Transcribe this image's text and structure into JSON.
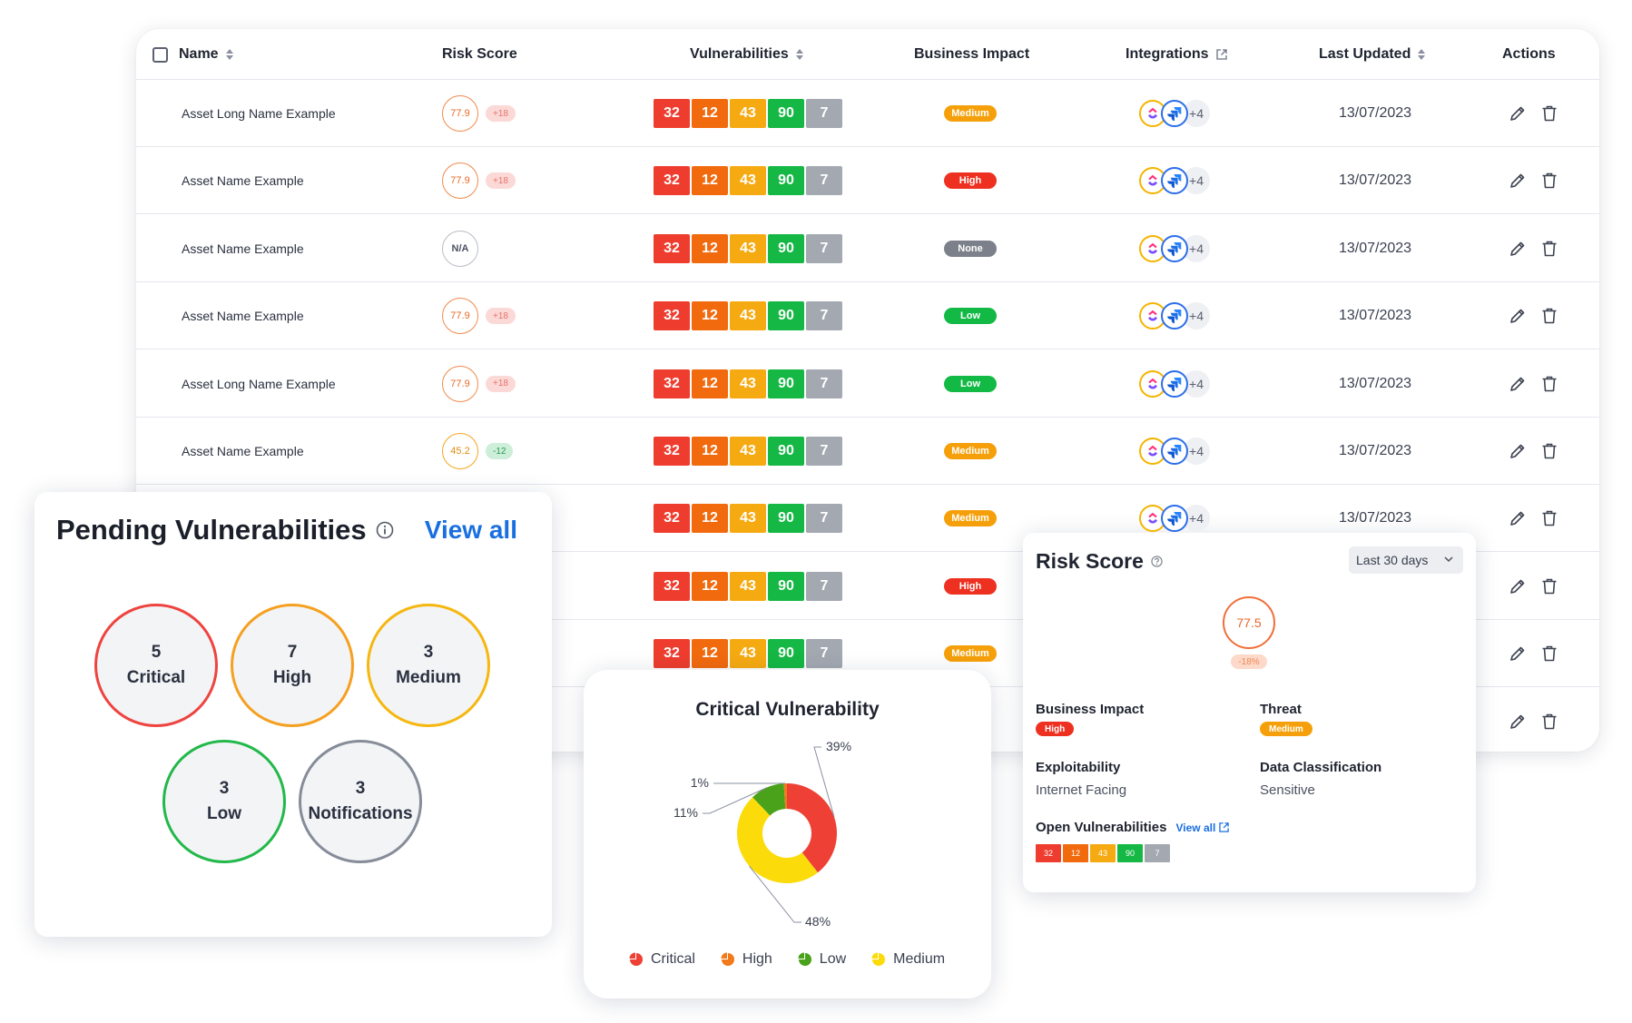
{
  "table": {
    "headers": {
      "name": "Name",
      "risk_score": "Risk Score",
      "vulnerabilities": "Vulnerabilities",
      "business_impact": "Business Impact",
      "integrations": "Integrations",
      "last_updated": "Last Updated",
      "actions": "Actions"
    },
    "rows": [
      {
        "name": "Asset Long Name Example",
        "score": "77.9",
        "delta": "+18",
        "vulns": [
          "32",
          "12",
          "43",
          "90",
          "7"
        ],
        "impact": "Medium",
        "more": "+4",
        "date": "13/07/2023"
      },
      {
        "name": "Asset Name Example",
        "score": "77.9",
        "delta": "+18",
        "vulns": [
          "32",
          "12",
          "43",
          "90",
          "7"
        ],
        "impact": "High",
        "more": "+4",
        "date": "13/07/2023"
      },
      {
        "name": "Asset Name Example",
        "score": "N/A",
        "delta": "",
        "vulns": [
          "32",
          "12",
          "43",
          "90",
          "7"
        ],
        "impact": "None",
        "more": "+4",
        "date": "13/07/2023"
      },
      {
        "name": "Asset Name Example",
        "score": "77.9",
        "delta": "+18",
        "vulns": [
          "32",
          "12",
          "43",
          "90",
          "7"
        ],
        "impact": "Low",
        "more": "+4",
        "date": "13/07/2023"
      },
      {
        "name": "Asset Long Name Example",
        "score": "77.9",
        "delta": "+18",
        "vulns": [
          "32",
          "12",
          "43",
          "90",
          "7"
        ],
        "impact": "Low",
        "more": "+4",
        "date": "13/07/2023"
      },
      {
        "name": "Asset Name Example",
        "score": "45.2",
        "delta": "-12",
        "vulns": [
          "32",
          "12",
          "43",
          "90",
          "7"
        ],
        "impact": "Medium",
        "more": "+4",
        "date": "13/07/2023"
      },
      {
        "name": "",
        "score": "",
        "delta": "",
        "vulns": [
          "32",
          "12",
          "43",
          "90",
          "7"
        ],
        "impact": "Medium",
        "more": "+4",
        "date": "13/07/2023"
      },
      {
        "name": "",
        "score": "",
        "delta": "",
        "vulns": [
          "32",
          "12",
          "43",
          "90",
          "7"
        ],
        "impact": "High",
        "more": "",
        "date": ""
      },
      {
        "name": "",
        "score": "",
        "delta": "",
        "vulns": [
          "32",
          "12",
          "43",
          "90",
          "7"
        ],
        "impact": "Medium",
        "more": "",
        "date": ""
      },
      {
        "name": "",
        "score": "",
        "delta": "",
        "vulns": [],
        "impact": "",
        "more": "",
        "date": ""
      }
    ]
  },
  "pending": {
    "title": "Pending Vulnerabilities",
    "view_all": "View all",
    "items": [
      {
        "count": "5",
        "label": "Critical"
      },
      {
        "count": "7",
        "label": "High"
      },
      {
        "count": "3",
        "label": "Medium"
      },
      {
        "count": "3",
        "label": "Low"
      },
      {
        "count": "3",
        "label": "Notifications"
      }
    ]
  },
  "donut": {
    "title": "Critical Vulnerability",
    "legend": [
      "Critical",
      "High",
      "Low",
      "Medium"
    ]
  },
  "chart_data": {
    "type": "pie",
    "title": "Critical Vulnerability",
    "categories": [
      "Critical",
      "High",
      "Low",
      "Medium"
    ],
    "values": [
      39,
      1,
      11,
      48
    ],
    "labels": [
      "39%",
      "1%",
      "11%",
      "48%"
    ],
    "colors": [
      "#ee4035",
      "#f37a1a",
      "#49a21a",
      "#fcdb0b"
    ],
    "legend_position": "bottom"
  },
  "risk": {
    "title": "Risk Score",
    "range": "Last 30 days",
    "score": "77.5",
    "delta": "-18%",
    "business_impact_label": "Business Impact",
    "business_impact_value": "High",
    "threat_label": "Threat",
    "threat_value": "Medium",
    "exploitability_label": "Exploitability",
    "exploitability_value": "Internet Facing",
    "data_class_label": "Data Classification",
    "data_class_value": "Sensitive",
    "open_vulns_label": "Open Vulnerabilities",
    "open_view_all": "View all",
    "open_vulns": [
      "32",
      "12",
      "43",
      "90",
      "7"
    ]
  }
}
